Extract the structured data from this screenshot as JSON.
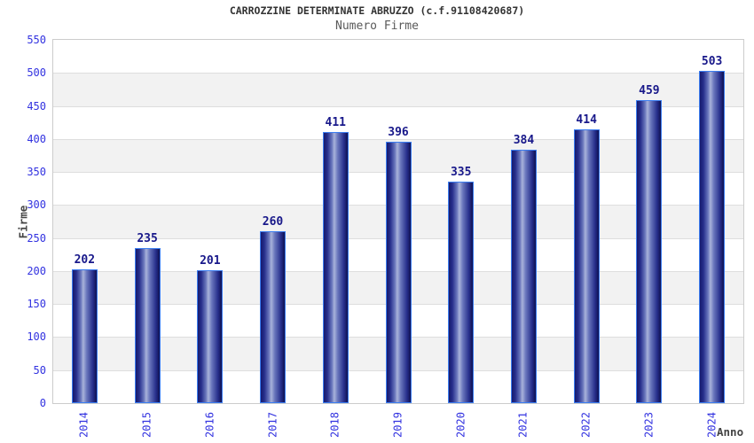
{
  "chart_data": {
    "type": "bar",
    "title": "CARROZZINE DETERMINATE ABRUZZO (c.f.91108420687)",
    "subtitle": "Numero Firme",
    "xlabel": "Anno",
    "ylabel": "Firme",
    "categories": [
      "2014",
      "2015",
      "2016",
      "2017",
      "2018",
      "2019",
      "2020",
      "2021",
      "2022",
      "2023",
      "2024"
    ],
    "values": [
      202,
      235,
      201,
      260,
      411,
      396,
      335,
      384,
      414,
      459,
      503
    ],
    "ylim": [
      0,
      550
    ],
    "yticks": [
      0,
      50,
      100,
      150,
      200,
      250,
      300,
      350,
      400,
      450,
      500,
      550
    ],
    "grid": "alternating-horizontal-bands",
    "legend": "none",
    "colors": {
      "title": "#333333",
      "subtitle": "#5a5a5a",
      "tick_label": "#3232e0",
      "value_label": "#18188a",
      "axis_label": "#444444",
      "bar_border": "#3b7df0",
      "bar_dark": "#161a6e",
      "bar_mid": "#6a77bd",
      "bar_light": "#a9b3da",
      "bar_dark_right": "#0f1150",
      "band_gray": "#f2f2f2",
      "band_white": "#ffffff",
      "gridline": "#dedede",
      "plot_border": "#cccccc"
    }
  }
}
